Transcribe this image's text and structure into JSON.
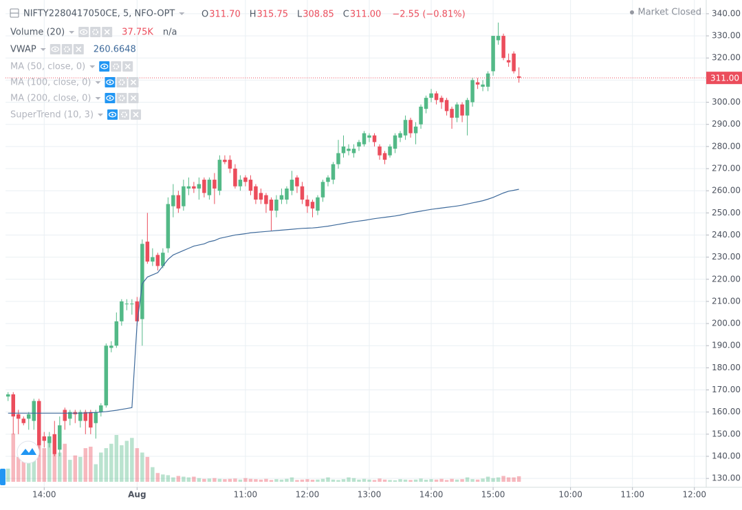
{
  "chart_data": {
    "type": "candlestick",
    "symbol": "NIFTY2280417050CE, 5, NFO-OPT",
    "ohlc": [
      {
        "key": "O",
        "value": {
          "value": 311.7,
          "label": "311.70"
        }
      },
      {
        "key": "H",
        "value": {
          "value": 315.75,
          "label": "315.75"
        }
      },
      {
        "key": "L",
        "value": {
          "value": 308.85,
          "label": "308.85"
        }
      },
      {
        "key": "C",
        "value": {
          "value": 311,
          "label": "311.00"
        }
      }
    ],
    "change": "−2.55 (−0.81%)",
    "status": "Market Closed",
    "studies": [
      {
        "name": "Volume (20)",
        "values": [
          {
            "value": 37.75,
            "label": "37.75K"
          },
          "n/a"
        ]
      },
      {
        "name": "VWAP",
        "values": [
          260.6648
        ]
      },
      {
        "name": "MA (50, close, 0)",
        "hidden": true
      },
      {
        "name": "MA (100, close, 0)",
        "hidden": true
      },
      {
        "name": "MA (200, close, 0)",
        "hidden": true
      },
      {
        "name": "SuperTrend (10, 3)",
        "hidden": true
      }
    ],
    "last_price": {
      "value": 311,
      "label": "311.00"
    },
    "colors": {
      "up": "#53b987",
      "down": "#eb4d5c",
      "vwap": "#3e6a9b",
      "last": "#eb4d5c"
    },
    "grid": true,
    "xlim": [
      -0.5,
      135.3
    ],
    "ylim": [
      126,
      346.2
    ],
    "volume_ylim": [
      0,
      480
    ],
    "xticks": [
      {
        "value": 7,
        "label": "14:00"
      },
      {
        "value": 25,
        "label": "Aug"
      },
      {
        "value": 46,
        "label": "11:00"
      },
      {
        "value": 58,
        "label": "12:00"
      },
      {
        "value": 70,
        "label": "13:00"
      },
      {
        "value": 82,
        "label": "14:00"
      },
      {
        "value": 94,
        "label": "15:00"
      },
      {
        "value": 109,
        "label": "10:00"
      },
      {
        "value": 121,
        "label": "11:00"
      },
      {
        "value": 133,
        "label": "12:00"
      }
    ],
    "yticks": [
      {
        "value": 130,
        "label": "130.00"
      },
      {
        "value": 140,
        "label": "140.00"
      },
      {
        "value": 150,
        "label": "150.00"
      },
      {
        "value": 160,
        "label": "160.00"
      },
      {
        "value": 170,
        "label": "170.00"
      },
      {
        "value": 180,
        "label": "180.00"
      },
      {
        "value": 190,
        "label": "190.00"
      },
      {
        "value": 200,
        "label": "200.00"
      },
      {
        "value": 210,
        "label": "210.00"
      },
      {
        "value": 220,
        "label": "220.00"
      },
      {
        "value": 230,
        "label": "230.00"
      },
      {
        "value": 240,
        "label": "240.00"
      },
      {
        "value": 250,
        "label": "250.00"
      },
      {
        "value": 260,
        "label": "260.00"
      },
      {
        "value": 270,
        "label": "270.00"
      },
      {
        "value": 280,
        "label": "280.00"
      },
      {
        "value": 290,
        "label": "290.00"
      },
      {
        "value": 300,
        "label": "300.00"
      },
      {
        "value": 310,
        "label": "310.00"
      },
      {
        "value": 320,
        "label": "320.00"
      },
      {
        "value": 330,
        "label": "330.00"
      },
      {
        "value": 340,
        "label": "340.00"
      }
    ],
    "open": [
      167,
      168,
      159,
      157,
      157,
      156,
      165,
      149,
      146,
      150,
      143,
      161,
      157,
      160,
      156,
      160,
      160,
      155,
      160,
      163,
      189,
      190,
      201,
      209,
      209,
      210,
      202,
      237,
      228,
      231,
      226,
      234,
      253,
      258,
      253,
      261,
      262,
      261,
      265,
      258,
      265,
      260,
      274,
      274,
      270,
      262,
      266,
      265,
      262,
      259,
      258,
      256,
      251,
      256,
      256,
      260,
      266,
      262,
      256,
      255,
      251,
      257,
      264,
      265,
      272,
      277,
      278,
      277,
      280,
      281,
      284,
      285,
      280,
      277,
      276,
      279,
      284,
      285,
      292,
      286,
      290,
      297,
      302,
      304,
      302,
      301,
      297,
      293,
      299,
      294,
      300,
      309,
      307,
      307,
      314,
      328,
      330,
      319,
      322,
      311.7
    ],
    "high": [
      169,
      169,
      161,
      158,
      160,
      166,
      166,
      151,
      151,
      156,
      158,
      162,
      161,
      161,
      161,
      161,
      161,
      161,
      164,
      191,
      192,
      205,
      211,
      211,
      211,
      212,
      238,
      250,
      234,
      232,
      234,
      257,
      263,
      260,
      265,
      266,
      264,
      266,
      266,
      266,
      268,
      276,
      276,
      276,
      272,
      267,
      267,
      267,
      263,
      261,
      259,
      257,
      258,
      261,
      262,
      269,
      267,
      264,
      258,
      256,
      258,
      265,
      267,
      273,
      283,
      285,
      281,
      281,
      283,
      287,
      286,
      286,
      281,
      278,
      281,
      286,
      287,
      294,
      293,
      291,
      299,
      303,
      306,
      305,
      303,
      302,
      298,
      300,
      300,
      302,
      311,
      311,
      310,
      314,
      330,
      336,
      331,
      322,
      323,
      315.75
    ],
    "low": [
      165,
      150,
      150,
      154,
      152,
      152,
      140,
      144,
      144,
      140,
      140,
      152,
      154,
      155,
      153,
      150,
      150,
      148,
      158,
      162,
      187,
      189,
      199,
      206,
      204,
      199,
      190,
      227,
      226,
      224,
      225,
      232,
      248,
      250,
      251,
      258,
      259,
      256,
      257,
      256,
      254,
      258,
      272,
      268,
      261,
      260,
      262,
      258,
      254,
      254,
      250,
      242,
      248,
      254,
      254,
      258,
      259,
      254,
      250,
      248,
      249,
      255,
      262,
      263,
      270,
      275,
      276,
      275,
      278,
      280,
      282,
      280,
      274,
      272,
      275,
      277,
      282,
      283,
      284,
      281,
      288,
      295,
      300,
      299,
      297,
      294,
      288,
      291,
      291,
      285,
      298,
      306,
      305,
      305,
      312,
      326,
      319,
      316,
      313,
      308.85
    ],
    "close": [
      168,
      158,
      157,
      155,
      159,
      165,
      145,
      147,
      149,
      141,
      154,
      156,
      160,
      159,
      160,
      156,
      153,
      160,
      163,
      190,
      190,
      201,
      210,
      209,
      209,
      201,
      236,
      228,
      230,
      226,
      232,
      254,
      258,
      252,
      262,
      262,
      261,
      263,
      259,
      265,
      261,
      274,
      273,
      270,
      262,
      265,
      264,
      260,
      256,
      256,
      254,
      251,
      256,
      258,
      261,
      265,
      262,
      256,
      253,
      252,
      257,
      264,
      266,
      272,
      277,
      280,
      279,
      279,
      282,
      286,
      285,
      282,
      276,
      274,
      280,
      285,
      286,
      292,
      286,
      289,
      298,
      302,
      304,
      301,
      300,
      296,
      293,
      299,
      294,
      301,
      310,
      308,
      308,
      313,
      330,
      330,
      320,
      318,
      314,
      311
    ],
    "volume": [
      90,
      330,
      170,
      190,
      140,
      240,
      300,
      230,
      280,
      240,
      200,
      260,
      150,
      180,
      170,
      230,
      240,
      120,
      200,
      230,
      260,
      320,
      250,
      280,
      300,
      230,
      200,
      170,
      100,
      60,
      50,
      45,
      30,
      40,
      35,
      30,
      35,
      25,
      20,
      22,
      25,
      20,
      18,
      20,
      22,
      15,
      25,
      20,
      18,
      15,
      20,
      12,
      18,
      15,
      20,
      30,
      12,
      15,
      18,
      14,
      15,
      20,
      30,
      15,
      12,
      18,
      30,
      25,
      15,
      20,
      15,
      12,
      22,
      15,
      12,
      10,
      18,
      15,
      12,
      15,
      22,
      14,
      18,
      15,
      20,
      12,
      20,
      15,
      18,
      30,
      18,
      15,
      22,
      35,
      25,
      30,
      40,
      30,
      30,
      37.75
    ],
    "vwap": [
      159.5,
      159.5,
      159.5,
      159.5,
      159.5,
      159.5,
      159.5,
      159.5,
      159.5,
      159.5,
      159.5,
      159.5,
      159.5,
      159.5,
      159.5,
      159.6,
      159.7,
      159.8,
      160,
      160.2,
      160.5,
      160.8,
      161.2,
      161.6,
      162,
      200,
      218,
      221,
      222,
      223,
      226,
      229,
      231,
      232,
      233,
      234,
      235,
      235.5,
      236,
      237,
      237.5,
      238.5,
      239,
      239.5,
      240,
      240.3,
      240.6,
      241,
      241.2,
      241.4,
      241.6,
      241.8,
      242,
      242.2,
      242.4,
      242.6,
      242.8,
      243,
      243.1,
      243.2,
      243.4,
      243.7,
      244,
      244.4,
      244.8,
      245.2,
      245.6,
      246,
      246.3,
      246.6,
      247,
      247.4,
      247.7,
      248,
      248.3,
      248.6,
      249,
      249.5,
      250,
      250.4,
      250.8,
      251.2,
      251.6,
      251.9,
      252.2,
      252.5,
      252.8,
      253.1,
      253.5,
      254,
      254.5,
      255,
      255.5,
      256.2,
      257,
      258,
      259,
      259.8,
      260.2,
      260.6648
    ]
  }
}
